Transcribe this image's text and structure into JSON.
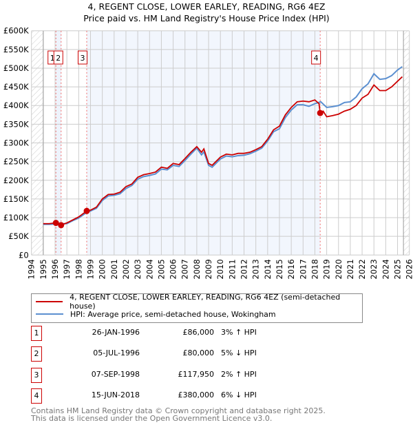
{
  "title_line1": "4, REGENT CLOSE, LOWER EARLEY, READING, RG6 4EZ",
  "title_line2": "Price paid vs. HM Land Registry's House Price Index (HPI)",
  "chart_data": {
    "type": "line",
    "xlim": [
      1994,
      2026
    ],
    "ylim": [
      0,
      600000
    ],
    "yticks": [
      0,
      50000,
      100000,
      150000,
      200000,
      250000,
      300000,
      350000,
      400000,
      450000,
      500000,
      550000,
      600000
    ],
    "ytick_labels": [
      "£0",
      "£50K",
      "£100K",
      "£150K",
      "£200K",
      "£250K",
      "£300K",
      "£350K",
      "£400K",
      "£450K",
      "£500K",
      "£550K",
      "£600K"
    ],
    "xticks": [
      1994,
      1995,
      1996,
      1997,
      1998,
      1999,
      2000,
      2001,
      2002,
      2003,
      2004,
      2005,
      2006,
      2007,
      2008,
      2009,
      2010,
      2011,
      2012,
      2013,
      2014,
      2015,
      2016,
      2017,
      2018,
      2019,
      2020,
      2021,
      2022,
      2023,
      2024,
      2025,
      2026
    ],
    "data_start": 1995.0,
    "data_end": 2025.5,
    "series": [
      {
        "name": "4, REGENT CLOSE, LOWER EARLEY, READING, RG6 4EZ (semi-detached house)",
        "color": "#cc0000",
        "x": [
          1995,
          1995.5,
          1996.07,
          1996.3,
          1996.5,
          1997,
          1997.5,
          1998,
          1998.68,
          1999,
          1999.5,
          2000,
          2000.5,
          2001,
          2001.5,
          2002,
          2002.5,
          2003,
          2003.5,
          2004,
          2004.5,
          2005,
          2005.5,
          2006,
          2006.5,
          2007,
          2007.5,
          2008,
          2008.4,
          2008.6,
          2009,
          2009.3,
          2010,
          2010.5,
          2011,
          2011.5,
          2012,
          2012.5,
          2013,
          2013.5,
          2014,
          2014.5,
          2015,
          2015.5,
          2016,
          2016.5,
          2017,
          2017.5,
          2018,
          2018.35,
          2018.45,
          2018.7,
          2019,
          2019.5,
          2020,
          2020.5,
          2021,
          2021.5,
          2022,
          2022.5,
          2023,
          2023.5,
          2024,
          2024.5,
          2025,
          2025.4
        ],
        "y": [
          84000,
          84000,
          86000,
          84000,
          80000,
          86000,
          94000,
          102000,
          117950,
          120000,
          128000,
          150000,
          162000,
          163000,
          168000,
          183000,
          190000,
          208000,
          215000,
          218000,
          222000,
          235000,
          232000,
          245000,
          242000,
          258000,
          275000,
          290000,
          275000,
          284000,
          245000,
          240000,
          262000,
          270000,
          268000,
          272000,
          272000,
          275000,
          282000,
          290000,
          310000,
          335000,
          345000,
          375000,
          395000,
          410000,
          412000,
          410000,
          415000,
          405000,
          380000,
          385000,
          370000,
          373000,
          377000,
          385000,
          390000,
          400000,
          420000,
          430000,
          455000,
          440000,
          440000,
          450000,
          465000,
          477000
        ]
      },
      {
        "name": "HPI: Average price, semi-detached house, Wokingham",
        "color": "#5b8fd0",
        "x": [
          1995,
          1995.5,
          1996,
          1996.5,
          1997,
          1997.5,
          1998,
          1998.68,
          1999,
          1999.5,
          2000,
          2000.5,
          2001,
          2001.5,
          2002,
          2002.5,
          2003,
          2003.5,
          2004,
          2004.5,
          2005,
          2005.5,
          2006,
          2006.5,
          2007,
          2007.5,
          2008,
          2008.4,
          2008.6,
          2009,
          2009.3,
          2010,
          2010.5,
          2011,
          2011.5,
          2012,
          2012.5,
          2013,
          2013.5,
          2014,
          2014.5,
          2015,
          2015.5,
          2016,
          2016.5,
          2017,
          2017.5,
          2018,
          2018.5,
          2019,
          2019.5,
          2020,
          2020.5,
          2021,
          2021.5,
          2022,
          2022.5,
          2023,
          2023.5,
          2024,
          2024.5,
          2025,
          2025.4
        ],
        "y": [
          82000,
          82000,
          83000,
          84000,
          84000,
          92000,
          99000,
          114000,
          118000,
          125000,
          146000,
          158000,
          160000,
          164000,
          178000,
          186000,
          203000,
          210000,
          213000,
          217000,
          230000,
          228000,
          240000,
          237000,
          253000,
          270000,
          286000,
          268000,
          276000,
          240000,
          235000,
          257000,
          265000,
          263000,
          266000,
          267000,
          271000,
          278000,
          286000,
          305000,
          330000,
          338000,
          368000,
          388000,
          402000,
          402000,
          398000,
          405000,
          410000,
          395000,
          397000,
          400000,
          408000,
          410000,
          423000,
          445000,
          458000,
          485000,
          470000,
          472000,
          480000,
          495000,
          504000
        ]
      }
    ],
    "sales": [
      {
        "label": "1",
        "x": 1996.07,
        "y": 86000
      },
      {
        "label": "2",
        "x": 1996.51,
        "y": 80000
      },
      {
        "label": "3",
        "x": 1998.68,
        "y": 117950
      },
      {
        "label": "4",
        "x": 2018.45,
        "y": 380000
      }
    ]
  },
  "legend": {
    "item1": "4, REGENT CLOSE, LOWER EARLEY, READING, RG6 4EZ (semi-detached house)",
    "item2": "HPI: Average price, semi-detached house, Wokingham"
  },
  "transactions": [
    {
      "num": "1",
      "date": "26-JAN-1996",
      "price": "£86,000",
      "hpi": "3% ↑ HPI"
    },
    {
      "num": "2",
      "date": "05-JUL-1996",
      "price": "£80,000",
      "hpi": "5% ↓ HPI"
    },
    {
      "num": "3",
      "date": "07-SEP-1998",
      "price": "£117,950",
      "hpi": "2% ↑ HPI"
    },
    {
      "num": "4",
      "date": "15-JUN-2018",
      "price": "£380,000",
      "hpi": "6% ↓ HPI"
    }
  ],
  "footer": {
    "line1": "Contains HM Land Registry data © Crown copyright and database right 2025.",
    "line2": "This data is licensed under the Open Government Licence v3.0."
  }
}
